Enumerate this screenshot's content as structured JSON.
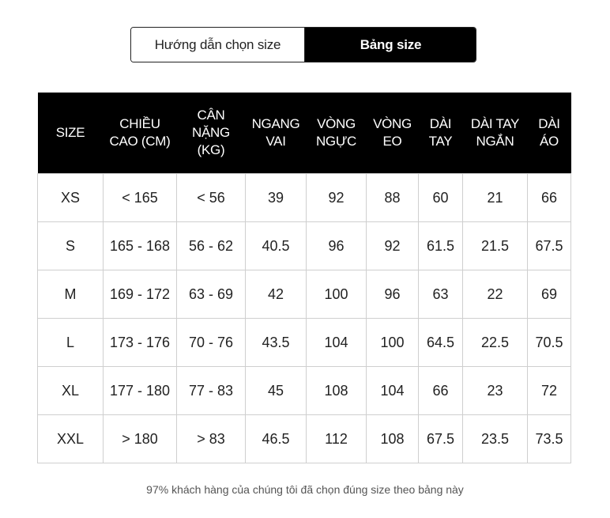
{
  "tabs": {
    "guide_label": "Hướng dẫn chọn size",
    "chart_label": "Bảng size"
  },
  "table": {
    "headers": [
      [
        "SIZE"
      ],
      [
        "CHIỀU",
        "CAO (CM)"
      ],
      [
        "CÂN",
        "NẶNG",
        "(KG)"
      ],
      [
        "NGANG",
        "VAI"
      ],
      [
        "VÒNG",
        "NGỰC"
      ],
      [
        "VÒNG",
        "EO"
      ],
      [
        "DÀI",
        "TAY"
      ],
      [
        "DÀI TAY",
        "NGẮN"
      ],
      [
        "DÀI",
        "ÁO"
      ]
    ],
    "rows": [
      [
        "XS",
        "< 165",
        "< 56",
        "39",
        "92",
        "88",
        "60",
        "21",
        "66"
      ],
      [
        "S",
        "165 - 168",
        "56 - 62",
        "40.5",
        "96",
        "92",
        "61.5",
        "21.5",
        "67.5"
      ],
      [
        "M",
        "169 - 172",
        "63 - 69",
        "42",
        "100",
        "96",
        "63",
        "22",
        "69"
      ],
      [
        "L",
        "173 - 176",
        "70 - 76",
        "43.5",
        "104",
        "100",
        "64.5",
        "22.5",
        "70.5"
      ],
      [
        "XL",
        "177 - 180",
        "77 - 83",
        "45",
        "108",
        "104",
        "66",
        "23",
        "72"
      ],
      [
        "XXL",
        "> 180",
        "> 83",
        "46.5",
        "112",
        "108",
        "67.5",
        "23.5",
        "73.5"
      ]
    ]
  },
  "footer": "97% khách hàng của chúng tôi đã chọn đúng size theo bảng này"
}
